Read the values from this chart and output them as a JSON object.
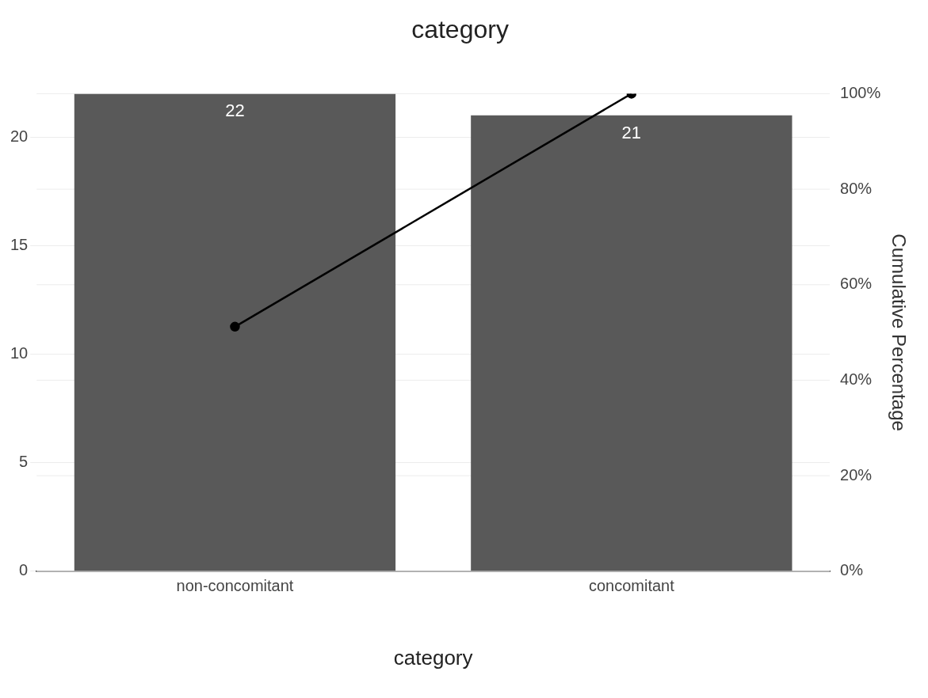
{
  "chart_data": {
    "type": "bar",
    "title": "category",
    "xlabel": "category",
    "y2label": "Cumulative Percentage",
    "categories": [
      "non-concomitant",
      "concomitant"
    ],
    "series": [
      {
        "color": "#595959",
        "values": [
          22,
          21
        ],
        "value_labels": [
          "22",
          "21"
        ]
      },
      {
        "type": "line",
        "axis": "y2",
        "color": "#000000",
        "values": [
          51.2,
          100
        ],
        "marker": "circle",
        "line_style": "solid"
      }
    ],
    "ylim": [
      0,
      22
    ],
    "yticks": [
      0,
      5,
      10,
      15,
      20
    ],
    "y2lim": [
      0,
      100
    ],
    "y2ticks": [
      {
        "value": 0,
        "label": "0%"
      },
      {
        "value": 20,
        "label": "20%"
      },
      {
        "value": 40,
        "label": "40%"
      },
      {
        "value": 60,
        "label": "60%"
      },
      {
        "value": 80,
        "label": "80%"
      },
      {
        "value": 100,
        "label": "100%"
      }
    ],
    "grid": "y",
    "legend": false
  }
}
